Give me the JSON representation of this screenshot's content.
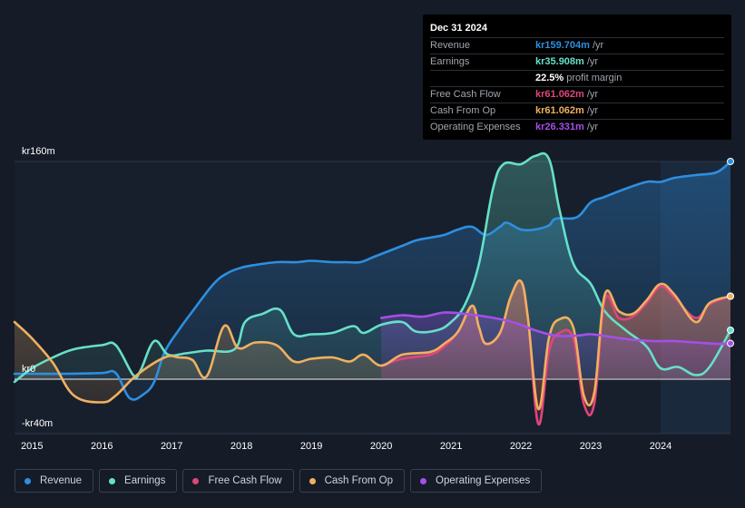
{
  "tooltip": {
    "date": "Dec 31 2024",
    "rows": [
      {
        "label": "Revenue",
        "value": "kr159.704m",
        "unit": "/yr",
        "color": "#2d8fe0"
      },
      {
        "label": "Earnings",
        "value": "kr35.908m",
        "unit": "/yr",
        "color": "#66e0c8"
      },
      {
        "label": "",
        "value": "22.5%",
        "unit": "profit margin",
        "color": "#ffffff"
      },
      {
        "label": "Free Cash Flow",
        "value": "kr61.062m",
        "unit": "/yr",
        "color": "#e0457b"
      },
      {
        "label": "Cash From Op",
        "value": "kr61.062m",
        "unit": "/yr",
        "color": "#f0b060"
      },
      {
        "label": "Operating Expenses",
        "value": "kr26.331m",
        "unit": "/yr",
        "color": "#a64fe8"
      }
    ]
  },
  "legend": [
    {
      "label": "Revenue",
      "color": "#2d8fe0"
    },
    {
      "label": "Earnings",
      "color": "#66e0c8"
    },
    {
      "label": "Free Cash Flow",
      "color": "#e0457b"
    },
    {
      "label": "Cash From Op",
      "color": "#f0b060"
    },
    {
      "label": "Operating Expenses",
      "color": "#a64fe8"
    }
  ],
  "chart_data": {
    "type": "line",
    "title": "",
    "y_tick_labels": [
      "kr160m",
      "kr0",
      "-kr40m"
    ],
    "ylim": [
      -40,
      160
    ],
    "y_ticks": [
      160,
      0,
      -40
    ],
    "xlim": [
      2014.75,
      2025.0
    ],
    "x_tick_labels": [
      "2015",
      "2016",
      "2017",
      "2018",
      "2019",
      "2020",
      "2021",
      "2022",
      "2023",
      "2024"
    ],
    "x_ticks": [
      2015,
      2016,
      2017,
      2018,
      2019,
      2020,
      2021,
      2022,
      2023,
      2024
    ],
    "forecast_start": 2024.0,
    "series": [
      {
        "name": "Revenue",
        "color": "#2d8fe0",
        "points": [
          [
            2014.75,
            4
          ],
          [
            2015.0,
            4
          ],
          [
            2015.5,
            4
          ],
          [
            2016.0,
            4.5
          ],
          [
            2016.2,
            4.5
          ],
          [
            2016.4,
            -14
          ],
          [
            2016.6,
            -11
          ],
          [
            2016.75,
            -2
          ],
          [
            2016.9,
            20
          ],
          [
            2017.1,
            36
          ],
          [
            2017.3,
            50
          ],
          [
            2017.6,
            70
          ],
          [
            2017.8,
            78
          ],
          [
            2018.0,
            82
          ],
          [
            2018.2,
            84
          ],
          [
            2018.5,
            86
          ],
          [
            2018.8,
            86
          ],
          [
            2019.0,
            87
          ],
          [
            2019.3,
            86
          ],
          [
            2019.5,
            86
          ],
          [
            2019.7,
            86
          ],
          [
            2019.9,
            90
          ],
          [
            2020.1,
            94
          ],
          [
            2020.3,
            98
          ],
          [
            2020.5,
            102
          ],
          [
            2020.7,
            104
          ],
          [
            2020.9,
            106
          ],
          [
            2021.1,
            110
          ],
          [
            2021.3,
            112
          ],
          [
            2021.5,
            106
          ],
          [
            2021.7,
            112
          ],
          [
            2021.8,
            115
          ],
          [
            2022.0,
            110
          ],
          [
            2022.2,
            110
          ],
          [
            2022.4,
            113
          ],
          [
            2022.5,
            118
          ],
          [
            2022.8,
            119
          ],
          [
            2023.0,
            130
          ],
          [
            2023.2,
            134
          ],
          [
            2023.5,
            140
          ],
          [
            2023.8,
            145
          ],
          [
            2024.0,
            145
          ],
          [
            2024.2,
            148
          ],
          [
            2024.5,
            150
          ],
          [
            2024.8,
            152
          ],
          [
            2025.0,
            160
          ]
        ]
      },
      {
        "name": "Earnings",
        "color": "#66e0c8",
        "points": [
          [
            2014.75,
            -2
          ],
          [
            2015.0,
            8
          ],
          [
            2015.3,
            16
          ],
          [
            2015.6,
            22
          ],
          [
            2016.0,
            25
          ],
          [
            2016.2,
            25
          ],
          [
            2016.45,
            3
          ],
          [
            2016.55,
            6
          ],
          [
            2016.75,
            28
          ],
          [
            2016.95,
            18
          ],
          [
            2017.2,
            19
          ],
          [
            2017.5,
            21
          ],
          [
            2017.9,
            22
          ],
          [
            2018.05,
            42
          ],
          [
            2018.3,
            48
          ],
          [
            2018.55,
            51
          ],
          [
            2018.75,
            33
          ],
          [
            2019.0,
            33
          ],
          [
            2019.3,
            34
          ],
          [
            2019.6,
            39
          ],
          [
            2019.75,
            34
          ],
          [
            2020.0,
            40
          ],
          [
            2020.3,
            42
          ],
          [
            2020.5,
            35
          ],
          [
            2020.8,
            36
          ],
          [
            2021.0,
            42
          ],
          [
            2021.2,
            55
          ],
          [
            2021.4,
            85
          ],
          [
            2021.6,
            140
          ],
          [
            2021.75,
            158
          ],
          [
            2022.0,
            158
          ],
          [
            2022.2,
            164
          ],
          [
            2022.4,
            162
          ],
          [
            2022.55,
            125
          ],
          [
            2022.75,
            85
          ],
          [
            2023.0,
            70
          ],
          [
            2023.2,
            50
          ],
          [
            2023.5,
            36
          ],
          [
            2023.8,
            24
          ],
          [
            2024.0,
            8
          ],
          [
            2024.25,
            9
          ],
          [
            2024.5,
            3
          ],
          [
            2024.7,
            9
          ],
          [
            2025.0,
            36
          ]
        ]
      },
      {
        "name": "Free Cash Flow",
        "color": "#e0457b",
        "points": [
          [
            2020.0,
            10
          ],
          [
            2020.3,
            15
          ],
          [
            2020.7,
            18
          ],
          [
            2020.9,
            24
          ],
          [
            2021.1,
            35
          ],
          [
            2021.3,
            54
          ],
          [
            2021.4,
            38
          ],
          [
            2021.5,
            26
          ],
          [
            2021.7,
            34
          ],
          [
            2021.85,
            60
          ],
          [
            2022.0,
            72
          ],
          [
            2022.1,
            45
          ],
          [
            2022.25,
            -33
          ],
          [
            2022.4,
            20
          ],
          [
            2022.55,
            34
          ],
          [
            2022.75,
            30
          ],
          [
            2022.9,
            -18
          ],
          [
            2023.05,
            -18
          ],
          [
            2023.2,
            58
          ],
          [
            2023.4,
            45
          ],
          [
            2023.6,
            46
          ],
          [
            2023.8,
            56
          ],
          [
            2024.0,
            68
          ],
          [
            2024.2,
            60
          ],
          [
            2024.5,
            45
          ],
          [
            2024.7,
            55
          ],
          [
            2025.0,
            61
          ]
        ]
      },
      {
        "name": "Cash From Op",
        "color": "#f0b060",
        "points": [
          [
            2014.75,
            42
          ],
          [
            2015.0,
            30
          ],
          [
            2015.3,
            12
          ],
          [
            2015.6,
            -12
          ],
          [
            2016.0,
            -17
          ],
          [
            2016.2,
            -12
          ],
          [
            2016.5,
            3
          ],
          [
            2016.9,
            16
          ],
          [
            2017.1,
            16
          ],
          [
            2017.3,
            14
          ],
          [
            2017.5,
            2
          ],
          [
            2017.75,
            39
          ],
          [
            2017.95,
            23
          ],
          [
            2018.2,
            27
          ],
          [
            2018.5,
            25
          ],
          [
            2018.75,
            13
          ],
          [
            2019.0,
            15
          ],
          [
            2019.3,
            16
          ],
          [
            2019.55,
            13
          ],
          [
            2019.75,
            18
          ],
          [
            2020.0,
            10
          ],
          [
            2020.3,
            18
          ],
          [
            2020.7,
            20
          ],
          [
            2020.9,
            26
          ],
          [
            2021.1,
            35
          ],
          [
            2021.3,
            54
          ],
          [
            2021.4,
            38
          ],
          [
            2021.5,
            26
          ],
          [
            2021.7,
            34
          ],
          [
            2021.85,
            60
          ],
          [
            2022.0,
            72
          ],
          [
            2022.1,
            45
          ],
          [
            2022.25,
            -22
          ],
          [
            2022.4,
            30
          ],
          [
            2022.55,
            44
          ],
          [
            2022.75,
            38
          ],
          [
            2022.9,
            -12
          ],
          [
            2023.05,
            -10
          ],
          [
            2023.2,
            62
          ],
          [
            2023.4,
            50
          ],
          [
            2023.6,
            48
          ],
          [
            2023.8,
            58
          ],
          [
            2024.0,
            70
          ],
          [
            2024.2,
            62
          ],
          [
            2024.5,
            42
          ],
          [
            2024.7,
            56
          ],
          [
            2025.0,
            61
          ]
        ]
      },
      {
        "name": "Operating Expenses",
        "color": "#a64fe8",
        "points": [
          [
            2020.0,
            45
          ],
          [
            2020.3,
            47
          ],
          [
            2020.6,
            46
          ],
          [
            2020.9,
            49
          ],
          [
            2021.2,
            48
          ],
          [
            2021.5,
            46
          ],
          [
            2021.8,
            43
          ],
          [
            2022.0,
            40
          ],
          [
            2022.2,
            36
          ],
          [
            2022.5,
            32
          ],
          [
            2022.8,
            32
          ],
          [
            2023.0,
            33
          ],
          [
            2023.3,
            31
          ],
          [
            2023.6,
            29
          ],
          [
            2023.9,
            28
          ],
          [
            2024.2,
            28
          ],
          [
            2024.5,
            27
          ],
          [
            2024.8,
            26
          ],
          [
            2025.0,
            26.3
          ]
        ]
      }
    ]
  }
}
